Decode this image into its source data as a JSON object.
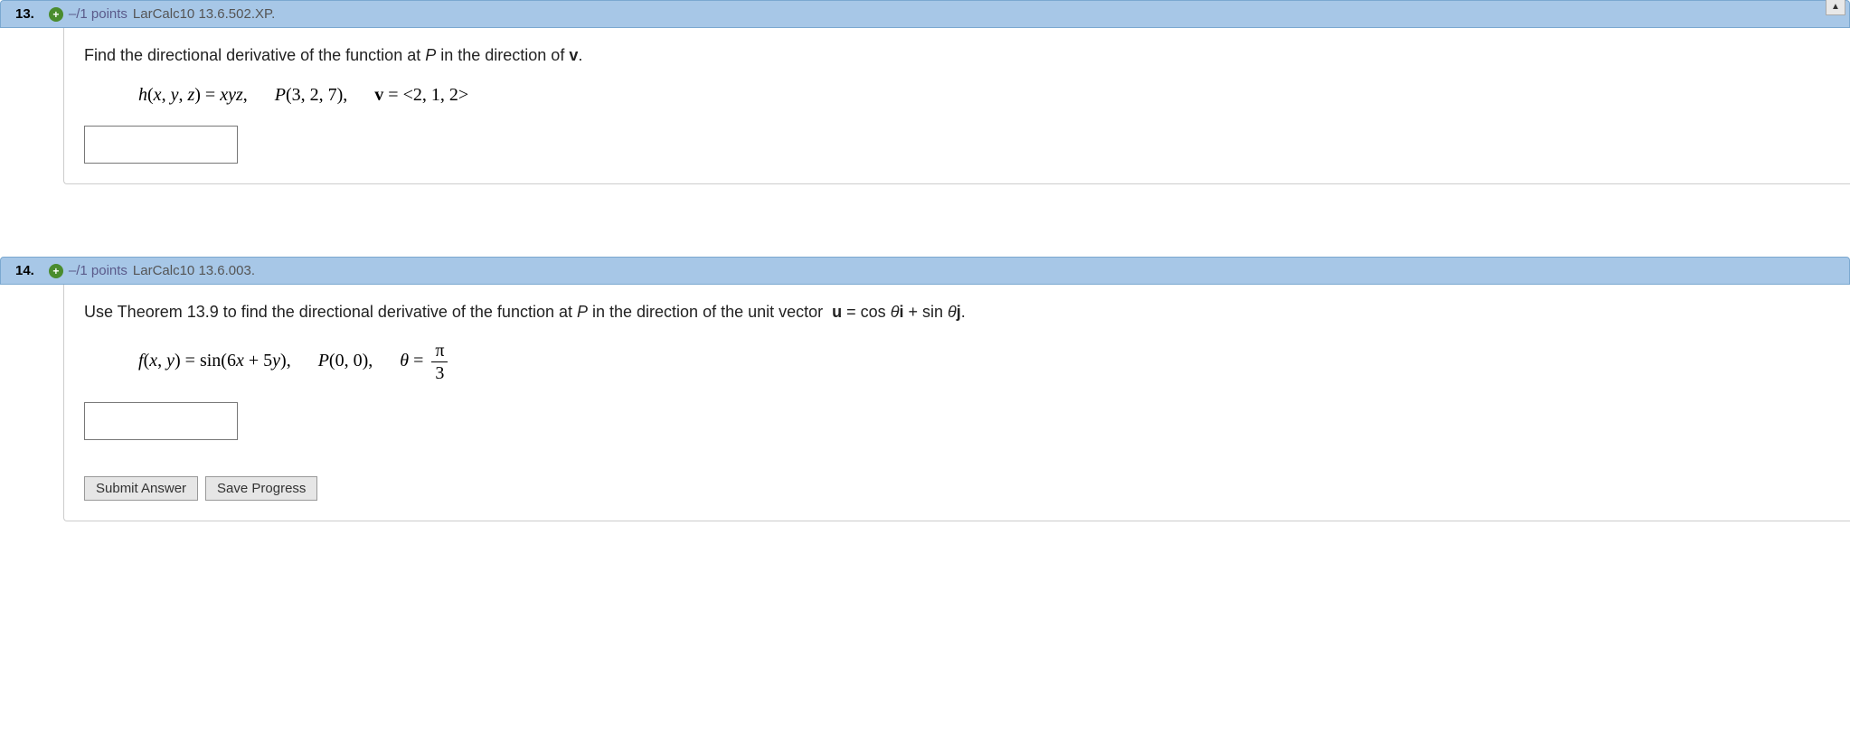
{
  "questions": [
    {
      "number": "13.",
      "points": "–/1 points",
      "assignment": "LarCalc10 13.6.502.XP.",
      "has_corner_button": true,
      "prompt_html": "Find the directional derivative of the function at <i>P</i> in the direction of <b>v</b>.",
      "math_html": "<span>h</span><span class='upright'>(</span>x<span class='upright'>, </span>y<span class='upright'>, </span>z<span class='upright'>) = </span>xyz<span class='upright'>,</span><span class='gap'></span>P<span class='upright'>(3, 2, 7),</span><span class='gap'></span><span class='bold'>v</span><span class='upright'> = &lt;2, 1, 2&gt;</span>",
      "buttons": []
    },
    {
      "number": "14.",
      "points": "–/1 points",
      "assignment": "LarCalc10 13.6.003.",
      "has_corner_button": false,
      "prompt_html": "Use Theorem 13.9 to find the directional derivative of the function at <i>P</i> in the direction of the unit vector&nbsp;&nbsp;<b>u</b> = cos <i>θ</i><b>i</b> + sin <i>θ</i><b>j</b>.",
      "math_html": "<span>f</span><span class='upright'>(</span>x<span class='upright'>, </span>y<span class='upright'>) = sin(6</span>x<span class='upright'> + 5</span>y<span class='upright'>),</span><span class='gap'></span>P<span class='upright'>(0, 0),</span><span class='gap'></span>θ<span class='upright'> = </span><span class='frac'><span class='num'>π</span><span class='den'>3</span></span>",
      "buttons": [
        "Submit Answer",
        "Save Progress"
      ]
    }
  ],
  "colors": {
    "header_bg": "#a7c7e7",
    "header_border": "#7ba8d0",
    "points_color": "#5a5a8a",
    "expand_bg": "#4a8c2e",
    "body_border": "#ccc",
    "answer_border": "#777",
    "btn_bg": "#e6e6e6",
    "btn_border": "#999"
  }
}
